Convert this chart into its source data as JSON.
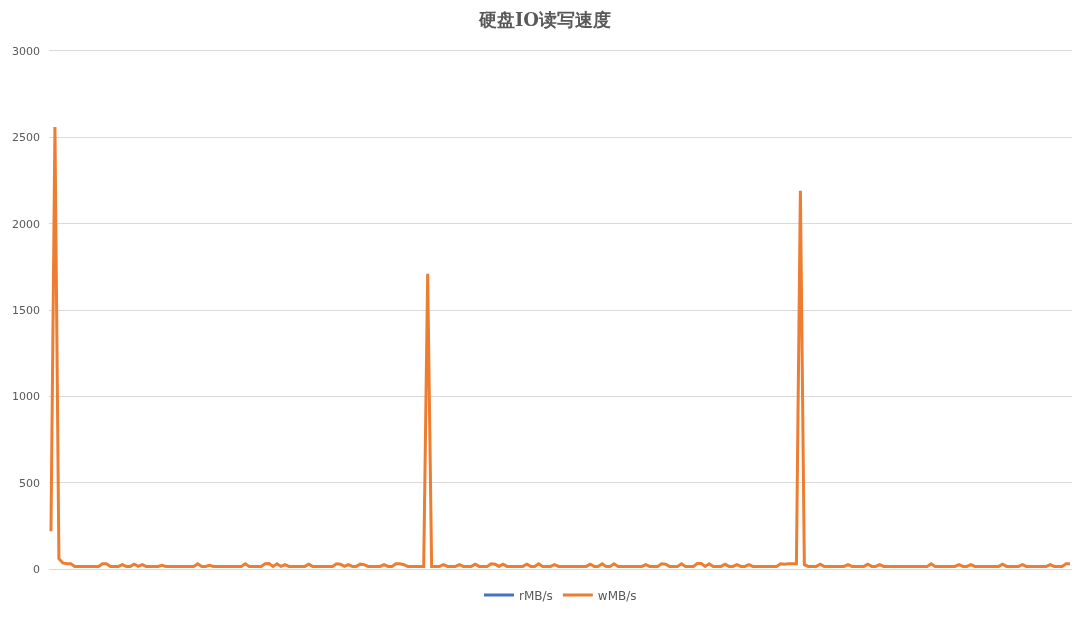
{
  "chart_data": {
    "type": "line",
    "title": "硬盘IO读写速度",
    "categories": [
      null,
      null,
      null,
      null,
      null,
      null,
      null,
      null,
      null,
      null,
      null,
      null,
      null,
      null,
      null,
      null,
      null,
      null,
      null,
      null,
      null,
      null,
      null,
      null,
      null,
      null,
      null,
      null,
      null,
      null,
      null,
      null,
      null,
      null,
      null,
      null,
      null,
      null,
      null,
      null,
      null,
      null,
      null,
      null,
      null,
      null,
      null,
      null,
      null,
      null,
      null,
      null,
      null,
      null,
      null,
      null,
      null,
      null,
      null,
      null,
      null,
      null,
      null,
      null,
      null,
      null,
      null,
      null,
      null,
      null,
      null,
      null,
      null,
      null,
      null,
      null,
      null,
      null,
      null,
      null,
      null,
      null,
      null,
      null,
      null,
      null,
      null,
      null,
      null,
      null,
      null,
      null,
      null,
      null,
      null,
      null,
      null,
      null,
      null,
      null,
      null,
      null,
      null,
      null,
      null,
      null,
      null,
      null,
      null,
      null,
      null,
      null,
      null,
      null,
      null,
      null,
      null,
      null,
      null,
      null,
      null,
      null,
      null,
      null,
      null,
      null,
      null,
      null,
      null,
      null,
      null,
      null,
      null,
      null,
      null,
      null,
      null,
      null,
      null,
      null,
      null,
      null,
      null,
      null,
      null,
      null,
      null,
      null,
      null,
      null,
      null,
      null,
      null,
      null,
      null,
      null,
      null,
      null,
      null,
      null,
      null,
      null,
      null,
      null,
      null,
      null,
      null,
      null,
      null,
      null,
      null,
      null,
      null,
      null,
      null,
      null,
      null,
      null,
      null,
      null,
      null,
      null,
      null,
      null,
      null,
      null,
      null,
      null,
      null,
      null,
      null,
      null,
      null,
      null,
      null,
      null,
      null,
      null,
      null,
      null,
      null,
      null,
      null,
      null,
      null,
      null,
      null,
      null,
      null,
      null,
      null,
      null,
      null,
      null,
      null,
      null,
      null,
      null,
      null,
      null,
      null,
      null,
      null,
      null,
      null,
      null,
      null,
      null,
      null,
      null,
      null,
      null,
      null,
      null,
      null,
      null,
      null,
      null,
      null,
      null,
      null,
      null,
      null,
      null,
      null,
      null,
      null,
      null,
      null,
      null,
      null,
      null,
      null,
      null,
      null,
      null,
      null,
      null
    ],
    "series": [
      {
        "name": "rMB/s",
        "color": "#4472c4",
        "values": [
          null,
          null,
          null,
          null,
          null,
          null,
          null,
          null,
          null,
          null,
          null,
          null,
          null,
          null,
          null,
          null,
          null,
          null,
          null,
          null,
          null,
          null,
          null,
          null,
          null,
          null,
          null,
          null,
          null,
          null,
          null,
          null,
          null,
          null,
          null,
          null,
          null,
          null,
          null,
          null,
          null,
          null,
          null,
          null,
          null,
          null,
          null,
          null,
          null,
          null,
          null,
          null,
          null,
          null,
          null,
          null,
          null,
          null,
          null,
          null,
          null,
          null,
          null,
          null,
          null,
          null,
          null,
          null,
          null,
          null,
          null,
          null,
          null,
          null,
          null,
          null,
          null,
          null,
          null,
          null,
          null,
          null,
          null,
          null,
          null,
          null,
          null,
          null,
          null,
          null,
          null,
          null,
          null,
          null,
          null,
          null,
          null,
          null,
          null,
          null,
          null,
          null,
          null,
          null,
          null,
          null,
          null,
          null,
          null,
          null,
          null,
          null,
          null,
          null,
          null,
          null,
          null,
          null,
          null,
          null,
          null,
          null,
          null,
          null,
          null,
          null,
          null,
          null,
          null,
          null,
          null,
          null,
          null,
          null,
          null,
          null,
          null,
          null,
          null,
          null,
          null,
          null,
          null,
          null,
          null,
          null,
          null,
          null,
          null,
          null,
          null,
          null,
          null,
          null,
          null,
          null,
          null,
          null,
          null,
          null,
          null,
          null,
          null,
          null,
          null,
          null,
          null,
          null,
          null,
          null,
          null,
          null,
          null,
          null,
          null,
          null,
          null,
          null,
          null,
          null,
          null,
          null,
          null,
          null,
          null,
          null,
          null,
          null,
          null,
          null,
          null,
          null,
          null,
          null,
          null,
          null,
          null,
          null,
          null,
          null,
          null,
          null,
          null,
          null,
          null,
          null,
          null,
          null,
          null,
          null,
          null,
          null,
          null,
          null,
          null,
          null,
          null,
          null,
          null,
          null,
          null,
          null,
          null,
          null,
          null,
          null,
          null,
          null,
          null,
          null,
          null,
          null,
          null,
          null,
          null,
          null,
          null,
          null,
          null,
          null,
          null,
          null,
          null,
          null,
          null,
          null,
          null,
          null,
          null,
          null,
          null,
          null,
          null,
          null,
          null,
          null,
          null,
          null
        ]
      },
      {
        "name": "wMB/s",
        "color": "#ed7d31",
        "values": [
          218,
          2560,
          60,
          35,
          30,
          30,
          15,
          15,
          15,
          15,
          15,
          15,
          15,
          30,
          30,
          15,
          15,
          15,
          25,
          15,
          15,
          28,
          15,
          25,
          15,
          15,
          15,
          15,
          22,
          15,
          15,
          15,
          15,
          15,
          15,
          15,
          15,
          30,
          15,
          15,
          22,
          15,
          15,
          15,
          15,
          15,
          15,
          15,
          15,
          30,
          15,
          15,
          15,
          15,
          30,
          32,
          15,
          30,
          15,
          25,
          15,
          15,
          15,
          15,
          15,
          28,
          15,
          15,
          15,
          15,
          15,
          15,
          30,
          28,
          15,
          25,
          15,
          15,
          28,
          25,
          15,
          15,
          15,
          15,
          25,
          15,
          15,
          30,
          30,
          25,
          15,
          15,
          15,
          15,
          15,
          1710,
          15,
          15,
          15,
          25,
          15,
          15,
          15,
          25,
          15,
          15,
          15,
          28,
          15,
          15,
          15,
          30,
          28,
          15,
          28,
          15,
          15,
          15,
          15,
          15,
          28,
          15,
          15,
          30,
          15,
          15,
          15,
          25,
          15,
          15,
          15,
          15,
          15,
          15,
          15,
          15,
          28,
          15,
          15,
          30,
          15,
          15,
          30,
          15,
          15,
          15,
          15,
          15,
          15,
          15,
          25,
          15,
          15,
          15,
          30,
          28,
          15,
          15,
          15,
          30,
          15,
          15,
          15,
          32,
          32,
          15,
          30,
          15,
          15,
          15,
          28,
          15,
          15,
          25,
          15,
          15,
          25,
          15,
          15,
          15,
          15,
          15,
          15,
          15,
          30,
          28,
          30,
          30,
          30,
          2190,
          25,
          15,
          15,
          15,
          28,
          15,
          15,
          15,
          15,
          15,
          15,
          25,
          15,
          15,
          15,
          15,
          28,
          15,
          15,
          25,
          15,
          15,
          15,
          15,
          15,
          15,
          15,
          15,
          15,
          15,
          15,
          15,
          30,
          15,
          15,
          15,
          15,
          15,
          15,
          25,
          15,
          15,
          25,
          15,
          15,
          15,
          15,
          15,
          15,
          15,
          28,
          15,
          15,
          15,
          15,
          25,
          15,
          15,
          15,
          15,
          15,
          15,
          25,
          15,
          15,
          15,
          30,
          30
        ]
      }
    ],
    "ylim": [
      0,
      3000
    ],
    "yticks": [
      0,
      500,
      1000,
      1500,
      2000,
      2500,
      3000
    ],
    "grid": "y",
    "legend": "bottom",
    "tick_labels": "y"
  }
}
